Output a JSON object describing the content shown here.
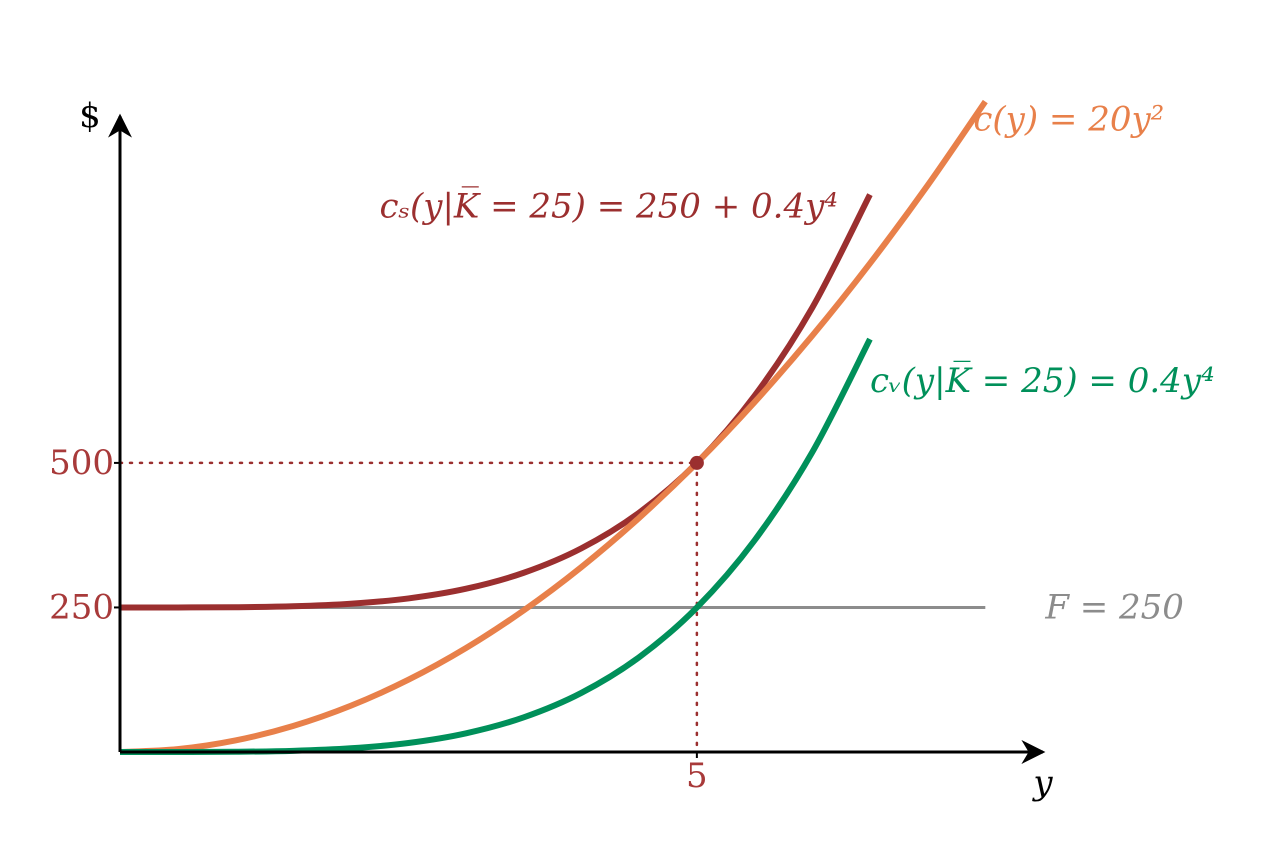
{
  "chart_data": {
    "type": "line",
    "x": [
      0,
      0.5,
      1,
      1.5,
      2,
      2.5,
      3,
      3.5,
      4,
      4.5,
      5,
      5.5,
      6,
      6.5,
      7,
      7.5
    ],
    "series": [
      {
        "name": "c(y) = 20y²",
        "color": "#e8804a",
        "values": [
          0,
          5,
          20,
          45,
          80,
          125,
          180,
          245,
          320,
          405,
          500,
          605,
          720,
          845,
          980,
          1125
        ]
      },
      {
        "name": "cₛ(y|K̅ = 25) = 250 + 0.4y⁴",
        "color": "#9b2f2f",
        "values": [
          250,
          250.025,
          250.4,
          252.025,
          256.4,
          265.625,
          282.4,
          310.025,
          352.4,
          414.025,
          500,
          616.025,
          768.4,
          964.025,
          null,
          null
        ]
      },
      {
        "name": "cᵥ(y|K̅ = 25) = 0.4y⁴",
        "color": "#00905a",
        "values": [
          0,
          0.025,
          0.4,
          2.025,
          6.4,
          15.625,
          32.4,
          60.025,
          102.4,
          164.025,
          250,
          366.025,
          518.4,
          714.025,
          null,
          null
        ]
      }
    ],
    "hline": {
      "label": "F = 250",
      "value": 250,
      "color": "#8c8c8c"
    },
    "point": {
      "x": 5,
      "y": 500,
      "color": "#9b2f2f"
    },
    "x_label": "y",
    "y_label": "$",
    "xlim": [
      0,
      8
    ],
    "ylim": [
      0,
      1100
    ],
    "xticks": [
      5
    ],
    "yticks": [
      250,
      500
    ],
    "tick_color": "#a83a3a"
  }
}
